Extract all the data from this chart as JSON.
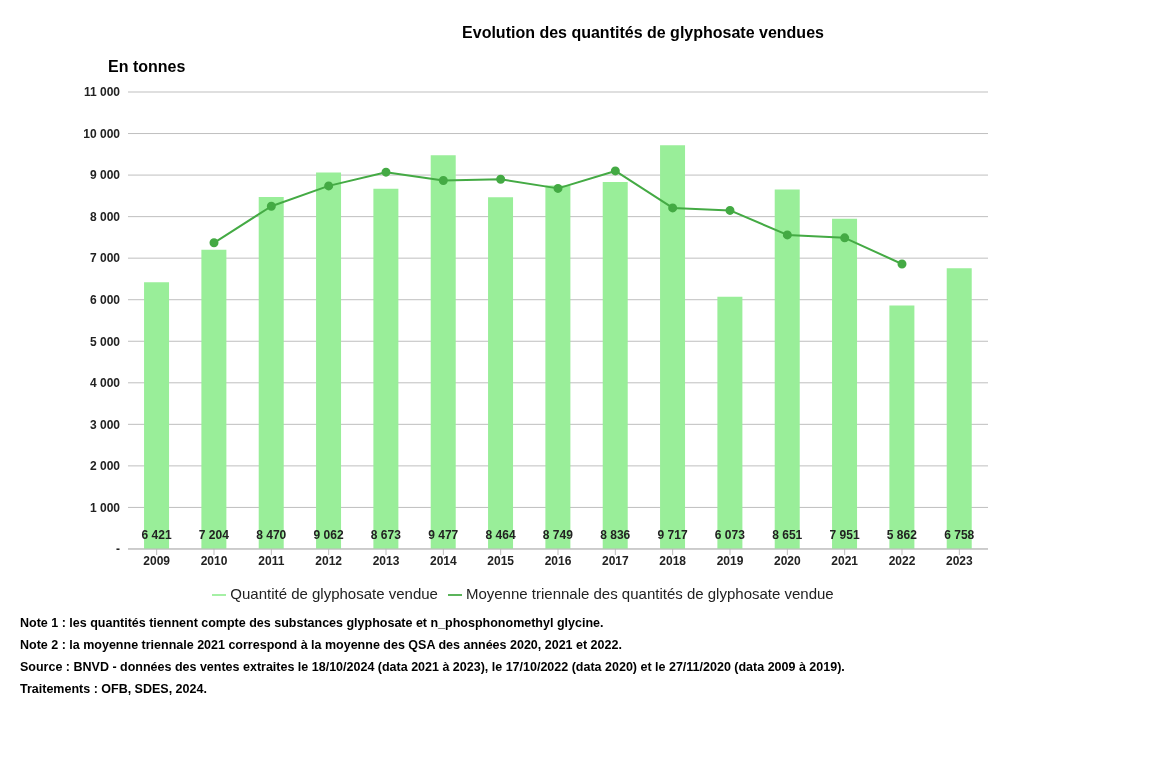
{
  "chart_data": {
    "type": "bar",
    "title": "Evolution des quantités de glyphosate vendues",
    "ylabel": "En tonnes",
    "categories": [
      "2009",
      "2010",
      "2011",
      "2012",
      "2013",
      "2014",
      "2015",
      "2016",
      "2017",
      "2018",
      "2019",
      "2020",
      "2021",
      "2022",
      "2023"
    ],
    "series": [
      {
        "name": "Quantité de glyphosate vendue",
        "color": "#99ee99",
        "values": [
          6421,
          7204,
          8470,
          9062,
          8673,
          9477,
          8464,
          8749,
          8836,
          9717,
          6073,
          8651,
          7951,
          5862,
          6758
        ],
        "value_labels": [
          "6 421",
          "7 204",
          "8 470",
          "9 062",
          "8 673",
          "9 477",
          "8 464",
          "8 749",
          "8 836",
          "9 717",
          "6 073",
          "8 651",
          "7 951",
          "5 862",
          "6 758"
        ]
      },
      {
        "name": "Moyenne triennale des quantités de glyphosate vendue",
        "type": "line",
        "color": "#44aa44",
        "marker": "circle",
        "line_style": "solid",
        "values": [
          null,
          7370,
          8250,
          8740,
          9070,
          8870,
          8900,
          8680,
          9100,
          8210,
          8150,
          7560,
          7490,
          6860,
          null
        ]
      }
    ],
    "ylim": [
      0,
      11000
    ],
    "yticks": [
      {
        "value": 0,
        "label": "-"
      },
      {
        "value": 1000,
        "label": "1 000"
      },
      {
        "value": 2000,
        "label": "2 000"
      },
      {
        "value": 3000,
        "label": "3 000"
      },
      {
        "value": 4000,
        "label": "4 000"
      },
      {
        "value": 5000,
        "label": "5 000"
      },
      {
        "value": 6000,
        "label": "6 000"
      },
      {
        "value": 7000,
        "label": "7 000"
      },
      {
        "value": 8000,
        "label": "8 000"
      },
      {
        "value": 9000,
        "label": "9 000"
      },
      {
        "value": 10000,
        "label": "10 000"
      },
      {
        "value": 11000,
        "label": "11 000"
      }
    ],
    "grid": "y",
    "legend": "bottom",
    "annotations": [
      "Note 1 : les quantités tiennent compte des substances glyphosate et n_phosphonomethyl glycine.",
      "Note 2 : la moyenne triennale 2021 correspond à la moyenne des QSA des années 2020, 2021 et 2022.",
      "Source : BNVD - données des ventes extraites le 18/10/2024 (data 2021 à 2023), le 17/10/2022 (data 2020) et le 27/11/2020 (data 2009 à 2019).",
      "Traitements : OFB, SDES, 2024."
    ]
  }
}
